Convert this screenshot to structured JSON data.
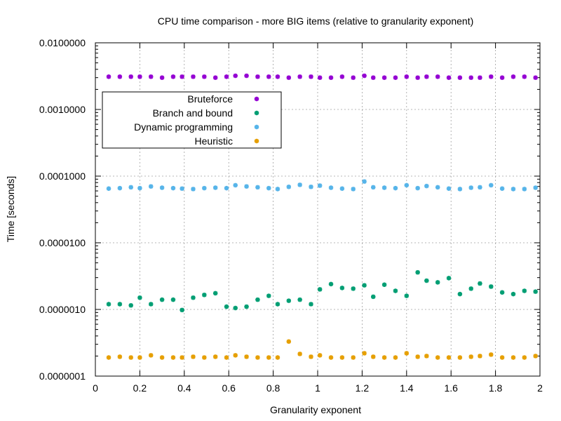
{
  "chart_data": {
    "type": "scatter",
    "title": "CPU time comparison - more BIG items (relative to granularity exponent)",
    "xlabel": "Granularity exponent",
    "ylabel": "Time [seconds]",
    "xlim": [
      0,
      2
    ],
    "ylim": [
      1e-07,
      0.01
    ],
    "yscale": "log",
    "grid": true,
    "legend_position": "upper-left",
    "x_ticks": [
      {
        "value": 0,
        "label": "0"
      },
      {
        "value": 0.2,
        "label": "0.2"
      },
      {
        "value": 0.4,
        "label": "0.4"
      },
      {
        "value": 0.6,
        "label": "0.6"
      },
      {
        "value": 0.8,
        "label": "0.8"
      },
      {
        "value": 1,
        "label": "1"
      },
      {
        "value": 1.2,
        "label": "1.2"
      },
      {
        "value": 1.4,
        "label": "1.4"
      },
      {
        "value": 1.6,
        "label": "1.6"
      },
      {
        "value": 1.8,
        "label": "1.8"
      },
      {
        "value": 2,
        "label": "2"
      }
    ],
    "y_ticks": [
      {
        "value": 0.01,
        "label": "0.0100000"
      },
      {
        "value": 0.001,
        "label": "0.0010000"
      },
      {
        "value": 0.0001,
        "label": "0.0001000"
      },
      {
        "value": 1e-05,
        "label": "0.0000100"
      },
      {
        "value": 1e-06,
        "label": "0.0000010"
      },
      {
        "value": 1e-07,
        "label": "0.0000001"
      }
    ],
    "x": [
      0.06,
      0.11,
      0.16,
      0.2,
      0.25,
      0.3,
      0.35,
      0.39,
      0.44,
      0.49,
      0.54,
      0.59,
      0.63,
      0.68,
      0.73,
      0.78,
      0.82,
      0.87,
      0.92,
      0.97,
      1.01,
      1.06,
      1.11,
      1.16,
      1.21,
      1.25,
      1.3,
      1.35,
      1.4,
      1.45,
      1.49,
      1.54,
      1.59,
      1.64,
      1.69,
      1.73,
      1.78,
      1.83,
      1.88,
      1.93,
      1.98
    ],
    "series": [
      {
        "name": "Bruteforce",
        "color": "#9400d3",
        "values": [
          0.0031,
          0.0031,
          0.0031,
          0.0031,
          0.0031,
          0.003,
          0.0031,
          0.0031,
          0.0031,
          0.0031,
          0.003,
          0.0031,
          0.0032,
          0.0032,
          0.0031,
          0.0031,
          0.0031,
          0.003,
          0.0031,
          0.0031,
          0.003,
          0.003,
          0.0031,
          0.003,
          0.0032,
          0.003,
          0.003,
          0.003,
          0.0031,
          0.003,
          0.0031,
          0.0031,
          0.003,
          0.003,
          0.003,
          0.003,
          0.0031,
          0.003,
          0.0031,
          0.0031,
          0.003
        ]
      },
      {
        "name": "Branch and bound",
        "color": "#009e73",
        "values": [
          1.2e-06,
          1.2e-06,
          1.15e-06,
          1.5e-06,
          1.2e-06,
          1.4e-06,
          1.4e-06,
          9.8e-07,
          1.5e-06,
          1.65e-06,
          1.75e-06,
          1.1e-06,
          1.05e-06,
          1.1e-06,
          1.4e-06,
          1.6e-06,
          1.2e-06,
          1.35e-06,
          1.4e-06,
          1.2e-06,
          2e-06,
          2.4e-06,
          2.1e-06,
          2.05e-06,
          2.3e-06,
          1.55e-06,
          2.35e-06,
          1.9e-06,
          1.6e-06,
          3.6e-06,
          2.7e-06,
          2.55e-06,
          2.95e-06,
          1.7e-06,
          2.05e-06,
          2.45e-06,
          2.2e-06,
          1.8e-06,
          1.7e-06,
          1.9e-06,
          1.85e-06
        ]
      },
      {
        "name": "Dynamic programming",
        "color": "#56b4e9",
        "values": [
          6.5e-05,
          6.6e-05,
          6.8e-05,
          6.6e-05,
          7e-05,
          6.7e-05,
          6.6e-05,
          6.5e-05,
          6.4e-05,
          6.6e-05,
          6.7e-05,
          6.6e-05,
          7.3e-05,
          7e-05,
          6.8e-05,
          6.6e-05,
          6.4e-05,
          6.9e-05,
          7.4e-05,
          6.9e-05,
          7.2e-05,
          6.7e-05,
          6.5e-05,
          6.4e-05,
          8.3e-05,
          6.8e-05,
          6.7e-05,
          6.6e-05,
          7.3e-05,
          6.6e-05,
          7.1e-05,
          6.8e-05,
          6.5e-05,
          6.4e-05,
          6.7e-05,
          6.8e-05,
          7.3e-05,
          6.5e-05,
          6.4e-05,
          6.4e-05,
          6.7e-05
        ]
      },
      {
        "name": "Heuristic",
        "color": "#e69f00",
        "values": [
          1.9e-07,
          1.95e-07,
          1.9e-07,
          1.9e-07,
          2.05e-07,
          1.9e-07,
          1.9e-07,
          1.9e-07,
          1.95e-07,
          1.9e-07,
          1.95e-07,
          1.9e-07,
          2.05e-07,
          1.95e-07,
          1.9e-07,
          1.9e-07,
          1.9e-07,
          3.3e-07,
          2.15e-07,
          1.95e-07,
          2.05e-07,
          1.9e-07,
          1.9e-07,
          1.9e-07,
          2.2e-07,
          1.95e-07,
          1.9e-07,
          1.9e-07,
          2.2e-07,
          1.95e-07,
          2e-07,
          1.9e-07,
          1.9e-07,
          1.9e-07,
          1.95e-07,
          2e-07,
          2.1e-07,
          1.9e-07,
          1.9e-07,
          1.9e-07,
          2e-07
        ]
      }
    ]
  }
}
